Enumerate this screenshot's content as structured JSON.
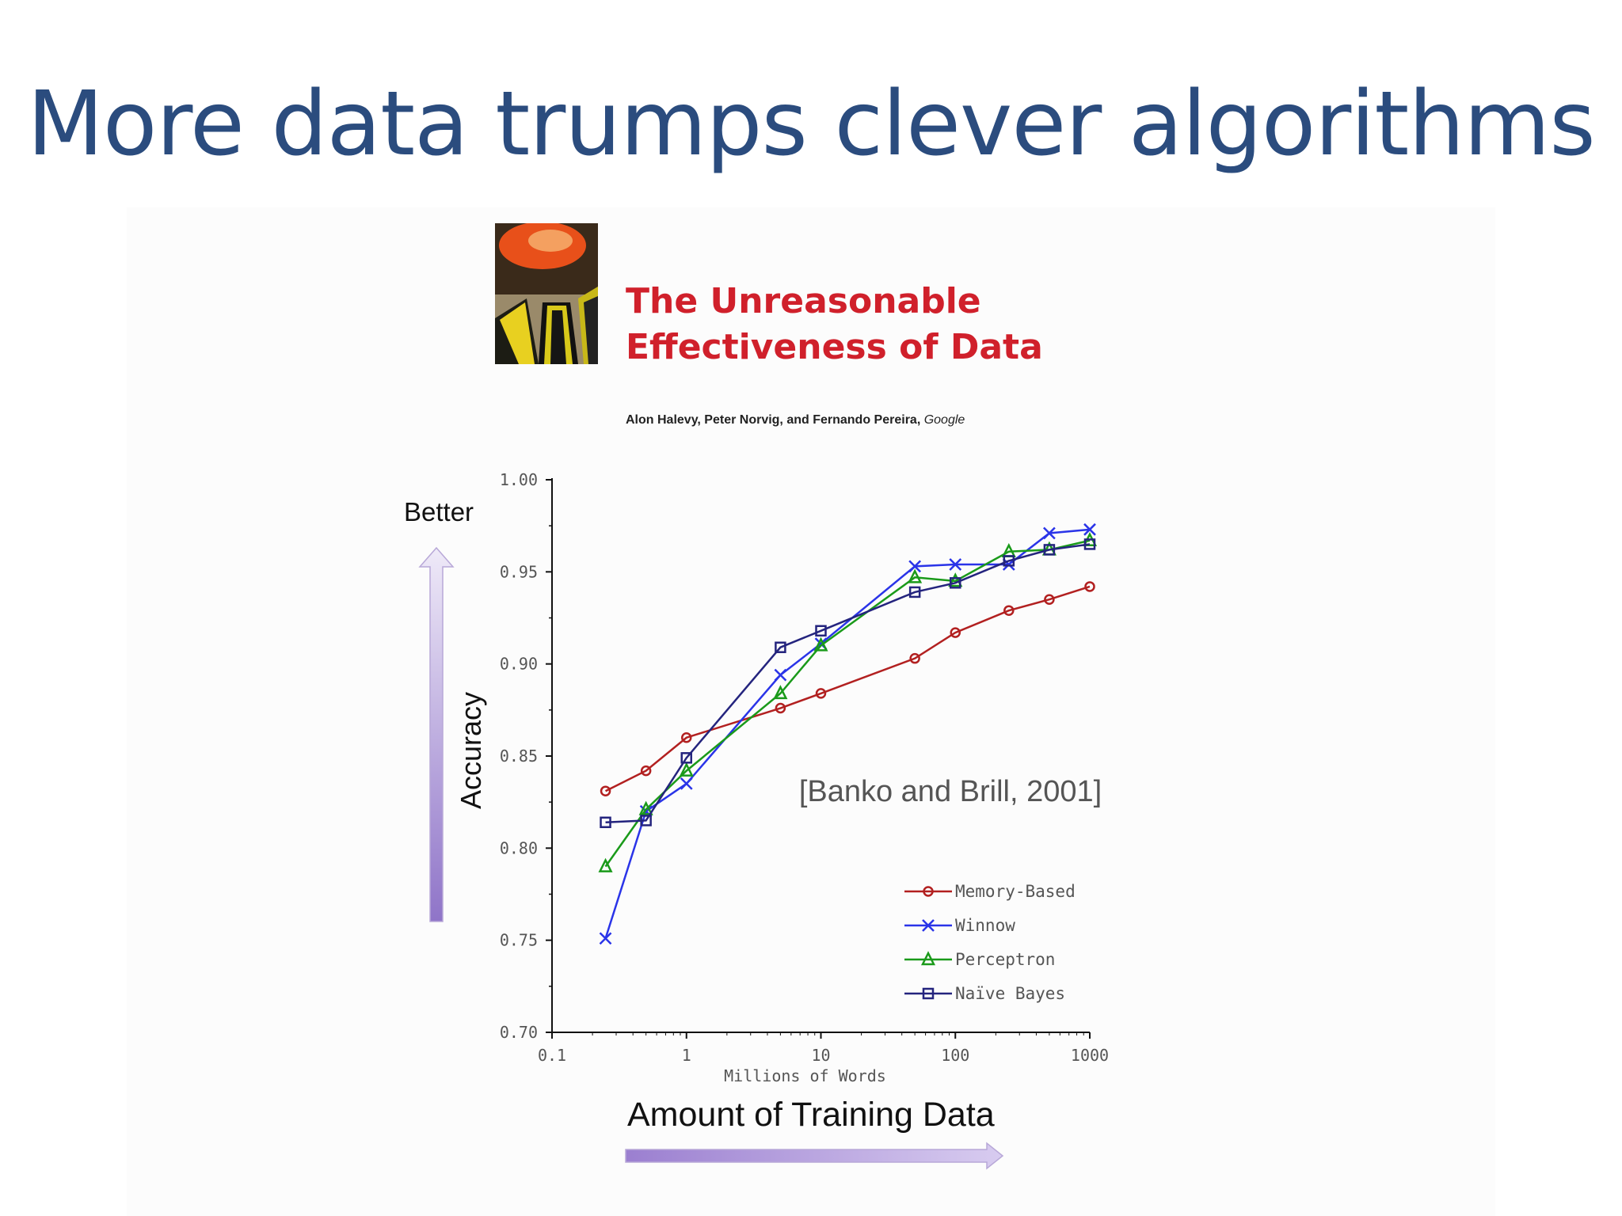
{
  "slide": {
    "title": "More data trumps clever algorithms",
    "title_color": "#2b4c7e"
  },
  "paper": {
    "title_line1": "The Unreasonable",
    "title_line2": "Effectiveness of Data",
    "title_color": "#d0202b",
    "authors": "Alon Halevy, Peter Norvig, and Fernando Pereira, ",
    "org": "Google"
  },
  "annotations": {
    "better": "Better",
    "amount": "Amount of Training Data",
    "arrow_color": "#9b7fd0"
  },
  "chart_data": {
    "type": "line",
    "citation": "[Banko and Brill, 2001]",
    "xlabel": "Millions of Words",
    "ylabel": "Accuracy",
    "xscale": "log",
    "xlim": [
      0.1,
      1000
    ],
    "ylim": [
      0.7,
      1.0
    ],
    "x_ticks": [
      "0.1",
      "1",
      "10",
      "100",
      "1000"
    ],
    "y_ticks": [
      "0.70",
      "0.75",
      "0.80",
      "0.85",
      "0.90",
      "0.95",
      "1.00"
    ],
    "legend_position": "bottom-right",
    "x": [
      0.25,
      0.5,
      1,
      5,
      10,
      50,
      100,
      250,
      500,
      1000
    ],
    "series": [
      {
        "name": "Memory-Based",
        "marker": "circle",
        "color": "#b22020",
        "values": [
          0.831,
          0.842,
          0.86,
          0.876,
          0.884,
          0.903,
          0.917,
          0.929,
          0.935,
          0.942
        ]
      },
      {
        "name": "Winnow",
        "marker": "x",
        "color": "#2a34e8",
        "values": [
          0.751,
          0.82,
          0.835,
          0.894,
          0.911,
          0.953,
          0.954,
          0.954,
          0.971,
          0.973
        ]
      },
      {
        "name": "Perceptron",
        "marker": "triangle",
        "color": "#1a9a1a",
        "values": [
          0.79,
          0.821,
          0.842,
          0.884,
          0.91,
          0.947,
          0.945,
          0.961,
          0.962,
          0.967
        ]
      },
      {
        "name": "Naïve Bayes",
        "marker": "square",
        "color": "#24247e",
        "values": [
          0.814,
          0.815,
          0.849,
          0.909,
          0.918,
          0.939,
          0.944,
          0.956,
          0.962,
          0.965
        ]
      }
    ]
  }
}
